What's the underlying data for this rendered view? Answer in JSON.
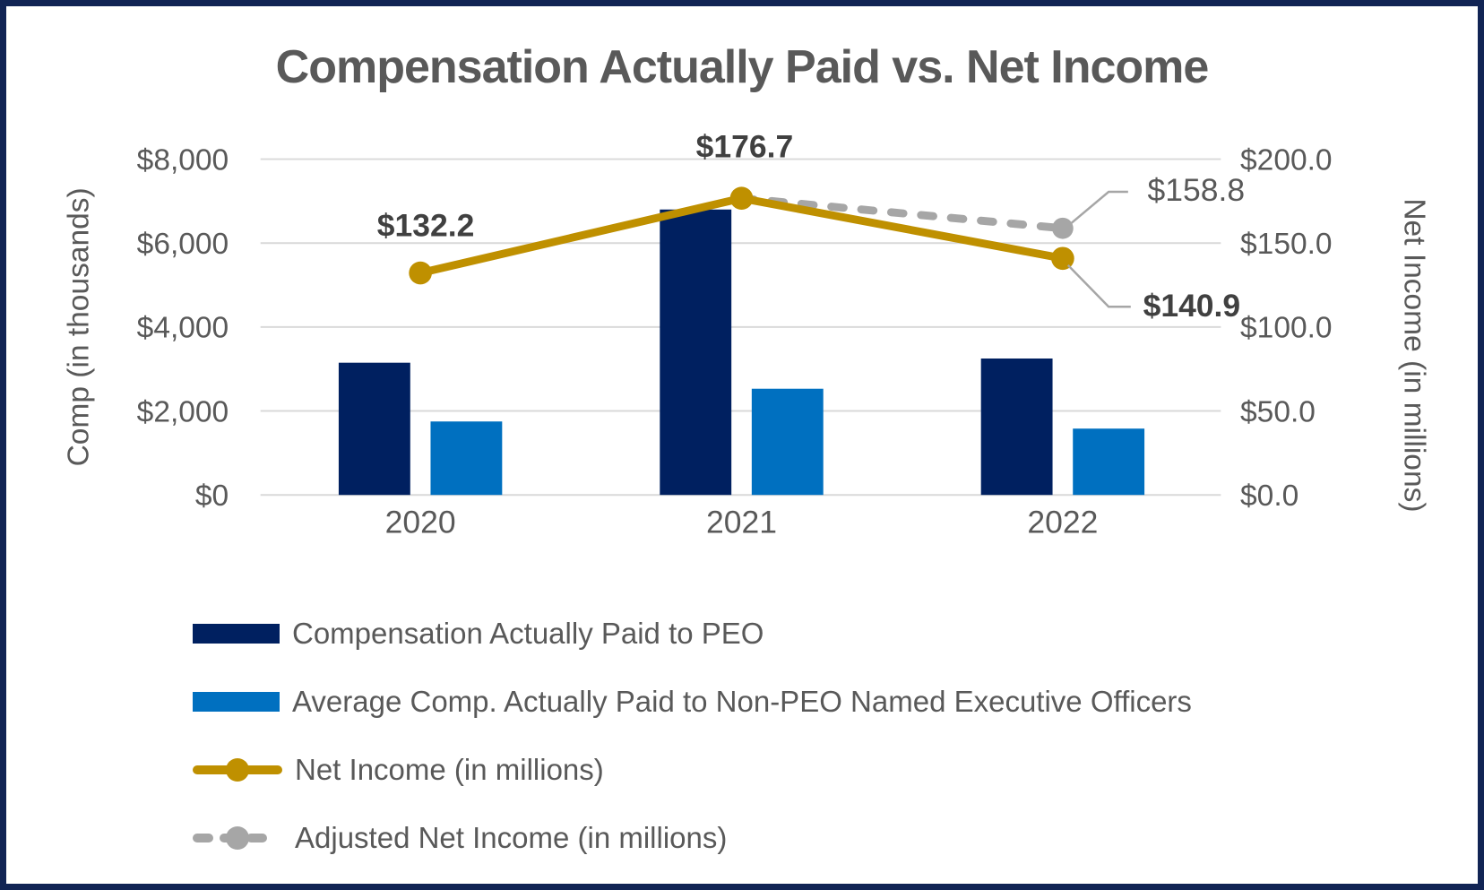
{
  "title": "Compensation Actually Paid vs. Net Income",
  "colors": {
    "frame_border": "#112454",
    "navy_bar": "#002060",
    "blue_bar": "#0070C0",
    "gold_line": "#BF9000",
    "gray_line": "#A6A6A6",
    "gridline": "#D9D9D9",
    "text_gray": "#595959",
    "data_label_dark": "#404040"
  },
  "chart_data": {
    "type": "combo-bar-line",
    "categories": [
      "2020",
      "2021",
      "2022"
    ],
    "bar_series": [
      {
        "name": "Compensation Actually Paid to PEO",
        "color": "#002060",
        "axis": "left",
        "values": [
          3150,
          6800,
          3250
        ]
      },
      {
        "name": "Average Comp. Actually Paid to Non-PEO Named Executive Officers",
        "color": "#0070C0",
        "axis": "left",
        "values": [
          1750,
          2530,
          1580
        ]
      }
    ],
    "line_series": [
      {
        "name": "Adjusted Net Income (in millions)",
        "color": "#A6A6A6",
        "dash": true,
        "axis": "right",
        "values": [
          null,
          176.7,
          158.8
        ],
        "labels": [
          null,
          null,
          "$158.8"
        ]
      },
      {
        "name": "Net Income (in millions)",
        "color": "#BF9000",
        "dash": false,
        "axis": "right",
        "values": [
          132.2,
          176.7,
          140.9
        ],
        "labels": [
          "$132.2",
          "$176.7",
          "$140.9"
        ]
      }
    ],
    "left_axis": {
      "title": "Comp (in thousands)",
      "min": 0,
      "max": 8000,
      "ticks": [
        {
          "value": 0,
          "label": "$0"
        },
        {
          "value": 2000,
          "label": "$2,000"
        },
        {
          "value": 4000,
          "label": "$4,000"
        },
        {
          "value": 6000,
          "label": "$6,000"
        },
        {
          "value": 8000,
          "label": "$8,000"
        }
      ]
    },
    "right_axis": {
      "title": "Net Income (in millions)",
      "min": 0,
      "max": 200,
      "ticks": [
        {
          "value": 0,
          "label": "$0.0"
        },
        {
          "value": 50,
          "label": "$50.0"
        },
        {
          "value": 100,
          "label": "$100.0"
        },
        {
          "value": 150,
          "label": "$150.0"
        },
        {
          "value": 200,
          "label": "$200.0"
        }
      ]
    },
    "gridlines": true,
    "legend_position": "bottom-left"
  },
  "legend": {
    "items": [
      {
        "label": "Compensation Actually Paid to PEO",
        "swatch": "bar",
        "color": "#002060",
        "dash": false
      },
      {
        "label": "Average Comp. Actually Paid to Non-PEO Named Executive Officers",
        "swatch": "bar",
        "color": "#0070C0",
        "dash": false
      },
      {
        "label": "Net Income (in millions)",
        "swatch": "line",
        "color": "#BF9000",
        "dash": false
      },
      {
        "label": "Adjusted Net Income (in millions)",
        "swatch": "line",
        "color": "#A6A6A6",
        "dash": true
      }
    ]
  }
}
